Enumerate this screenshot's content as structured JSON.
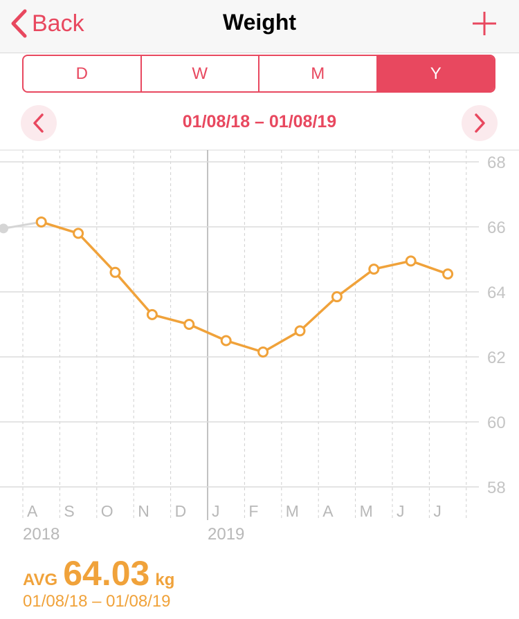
{
  "navbar": {
    "back_label": "Back",
    "title": "Weight",
    "add_icon": "plus-icon"
  },
  "segments": [
    {
      "label": "D",
      "active": false
    },
    {
      "label": "W",
      "active": false
    },
    {
      "label": "M",
      "active": false
    },
    {
      "label": "Y",
      "active": true
    }
  ],
  "date_range": "01/08/18 – 01/08/19",
  "colors": {
    "accent": "#e8485f",
    "series": "#f0a23a",
    "grid": "#dcdcdc"
  },
  "chart_data": {
    "type": "line",
    "ylim": [
      58,
      68
    ],
    "y_ticks": [
      "68",
      "66",
      "64",
      "62",
      "60",
      "58"
    ],
    "month_labels": [
      "A",
      "S",
      "O",
      "N",
      "D",
      "J",
      "F",
      "M",
      "A",
      "M",
      "J",
      "J"
    ],
    "year_labels": [
      {
        "label": "2018",
        "at_month": 0
      },
      {
        "label": "2019",
        "at_month": 5
      }
    ],
    "previous_point": {
      "x": "Jul 2018",
      "y": 65.95
    },
    "series": [
      {
        "values": [
          {
            "x": "Aug 2018",
            "y": 66.15
          },
          {
            "x": "Sep 2018",
            "y": 65.8
          },
          {
            "x": "Oct 2018",
            "y": 64.6
          },
          {
            "x": "Nov 2018",
            "y": 63.3
          },
          {
            "x": "Dec 2018",
            "y": 63.0
          },
          {
            "x": "Jan 2019",
            "y": 62.5
          },
          {
            "x": "Feb 2019",
            "y": 62.15
          },
          {
            "x": "Mar 2019",
            "y": 62.8
          },
          {
            "x": "Apr 2019",
            "y": 63.85
          },
          {
            "x": "May 2019",
            "y": 64.7
          },
          {
            "x": "Jun 2019",
            "y": 64.95
          },
          {
            "x": "Jul 2019",
            "y": 64.55
          }
        ]
      }
    ],
    "grid": true
  },
  "summary": {
    "label": "AVG",
    "value": "64.03",
    "unit": "kg",
    "range": "01/08/18 – 01/08/19"
  }
}
